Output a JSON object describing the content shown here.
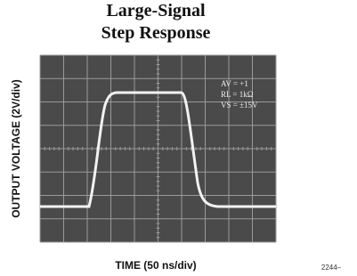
{
  "figure": {
    "title_lines": [
      "Large-Signal",
      "Step Response"
    ],
    "y_label": "OUTPUT VOLTAGE (2V/div)",
    "x_label": "TIME (50 ns/div)",
    "conditions": [
      "AV = +1",
      "RL = 1kΩ",
      "VS = ±15V"
    ],
    "figure_number": "2244–"
  }
}
